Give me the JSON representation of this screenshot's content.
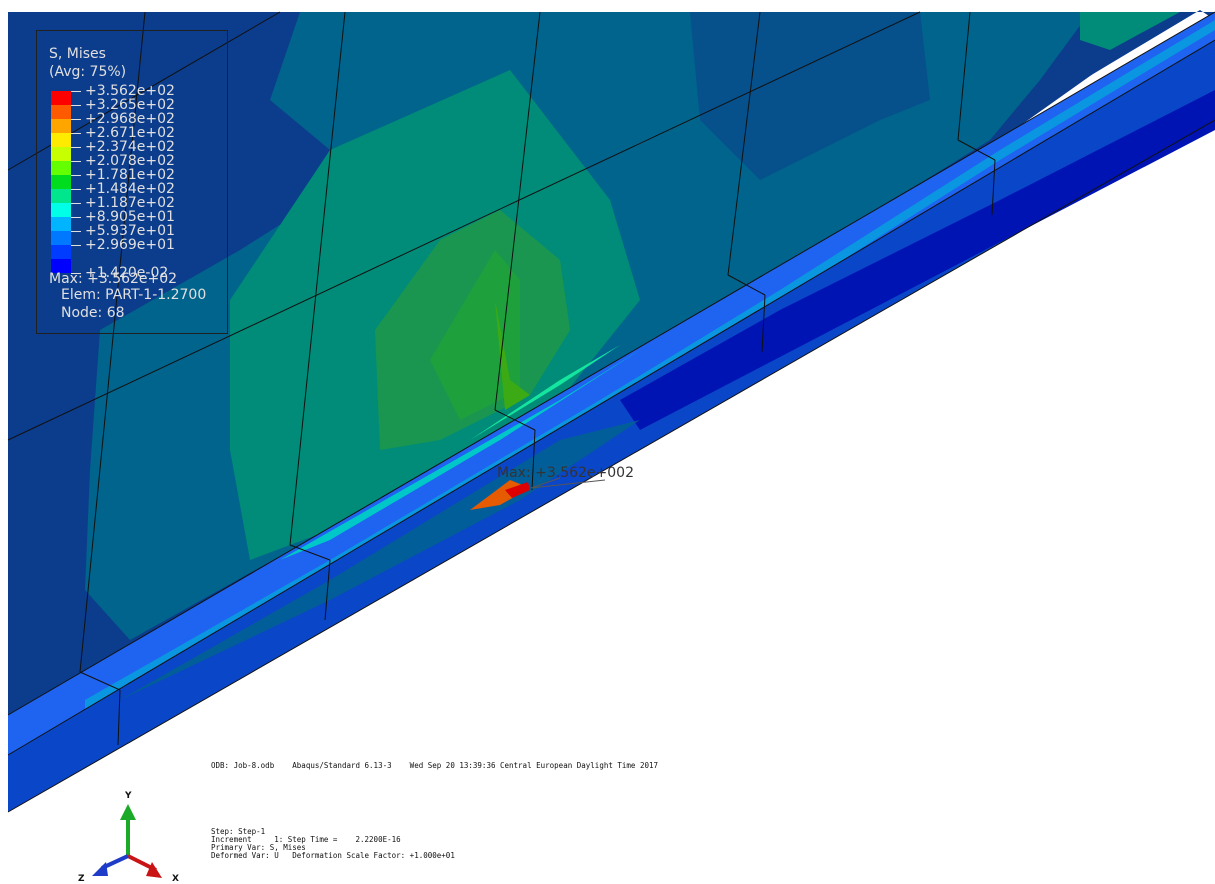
{
  "legend": {
    "title": "S, Mises",
    "avg": "(Avg: 75%)",
    "colors": [
      "#ff0000",
      "#ff5a00",
      "#ffa500",
      "#ffeb00",
      "#c8ff00",
      "#64ff00",
      "#00dc1e",
      "#00e68c",
      "#00ffe6",
      "#00b4ff",
      "#0078ff",
      "#003cff",
      "#0000ff"
    ],
    "values": [
      "+3.562e+02",
      "+3.265e+02",
      "+2.968e+02",
      "+2.671e+02",
      "+2.374e+02",
      "+2.078e+02",
      "+1.781e+02",
      "+1.484e+02",
      "+1.187e+02",
      "+8.905e+01",
      "+5.937e+01",
      "+2.969e+01",
      "+1.420e-02"
    ],
    "max": "Max: +3.562e+02",
    "elem": "Elem: PART-1-1.2700",
    "node": "Node: 68"
  },
  "annotation": {
    "max_label": "Max: +3.562e+002"
  },
  "info": {
    "odb_line": "ODB: Job-8.odb    Abaqus/Standard 6.13-3    Wed Sep 20 13:39:36 Central European Daylight Time 2017",
    "step": "Step: Step-1",
    "increment": "Increment     1: Step Time =    2.2200E-16",
    "primary_var": "Primary Var: S, Mises",
    "deformed_var": "Deformed Var: U   Deformation Scale Factor: +1.000e+01"
  },
  "triad": {
    "y_label": "Y",
    "z_label": "Z",
    "x_label": "X"
  },
  "palette": {
    "deep_blue": "#0c3c8c",
    "teal": "#00648c",
    "sea_green": "#008c78",
    "green": "#1ea03c",
    "cyan": "#00c8c8",
    "bright_blue": "#1e64f0"
  }
}
